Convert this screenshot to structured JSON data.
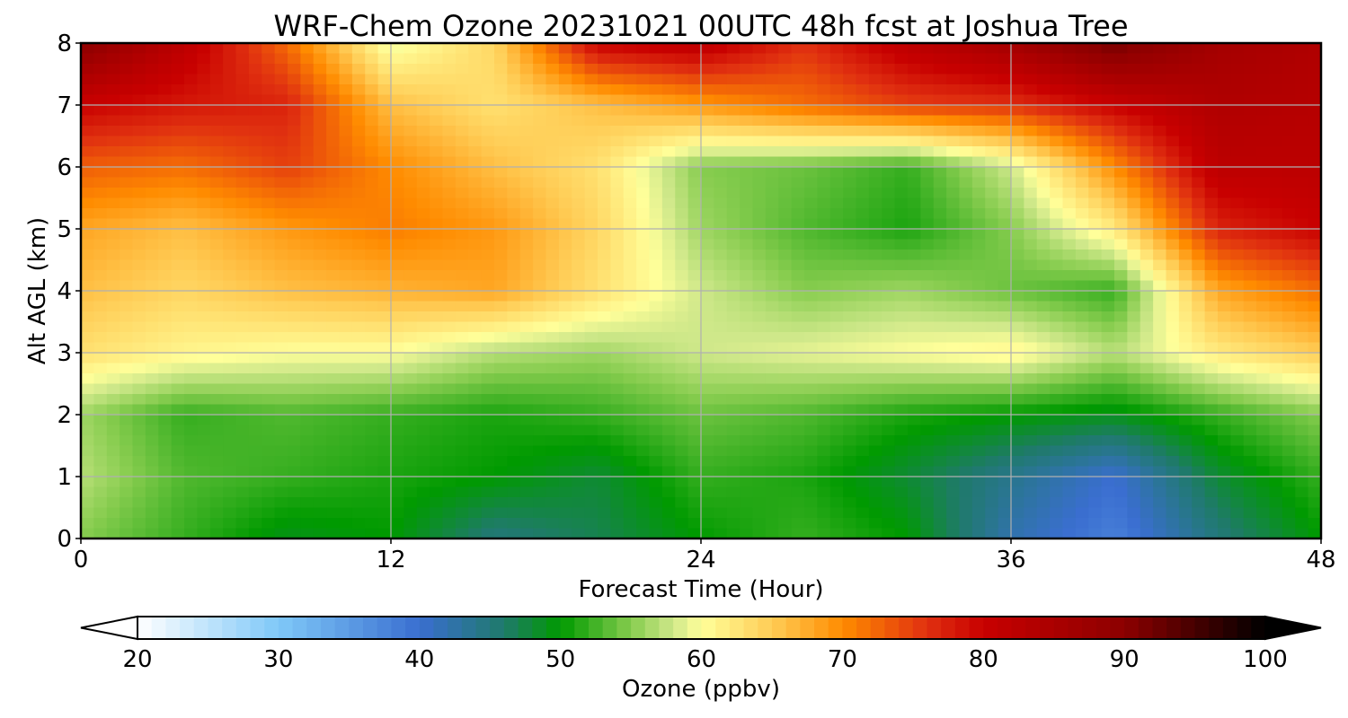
{
  "chart_data": {
    "type": "heatmap",
    "title": "WRF-Chem Ozone  20231021 00UTC 48h fcst at Joshua Tree",
    "xlabel": "Forecast Time (Hour)",
    "ylabel": "Alt AGL (km)",
    "xlim": [
      0,
      48
    ],
    "ylim": [
      0,
      8
    ],
    "xticks": [
      0,
      12,
      24,
      36,
      48
    ],
    "yticks": [
      0,
      1,
      2,
      3,
      4,
      5,
      6,
      7,
      8
    ],
    "grid": true,
    "x": [
      0,
      4,
      8,
      12,
      16,
      20,
      24,
      28,
      32,
      36,
      40,
      44,
      48
    ],
    "y": [
      0,
      1,
      2,
      3,
      4,
      5,
      6,
      7,
      8
    ],
    "z": [
      [
        55,
        52,
        49,
        50,
        45,
        47,
        50,
        52,
        50,
        42,
        38,
        45,
        50
      ],
      [
        57,
        53,
        52,
        51,
        50,
        48,
        52,
        51,
        48,
        44,
        40,
        48,
        52
      ],
      [
        56,
        52,
        53,
        52,
        51,
        52,
        54,
        53,
        51,
        50,
        49,
        52,
        55
      ],
      [
        63,
        61,
        60,
        60,
        57,
        56,
        58,
        59,
        60,
        61,
        57,
        62,
        65
      ],
      [
        66,
        64,
        66,
        67,
        68,
        63,
        58,
        55,
        56,
        54,
        52,
        68,
        72
      ],
      [
        68,
        66,
        69,
        71,
        69,
        64,
        56,
        53,
        51,
        55,
        62,
        77,
        80
      ],
      [
        73,
        72,
        75,
        70,
        66,
        63,
        55,
        54,
        52,
        58,
        70,
        82,
        82
      ],
      [
        80,
        78,
        77,
        66,
        63,
        66,
        69,
        72,
        75,
        76,
        80,
        84,
        83
      ],
      [
        90,
        82,
        72,
        59,
        64,
        80,
        82,
        76,
        82,
        86,
        92,
        86,
        84
      ]
    ],
    "colorbar": {
      "label": "Ozone  (ppbv)",
      "min": 20,
      "max": 100,
      "ticks": [
        20,
        30,
        40,
        50,
        60,
        70,
        80,
        90,
        100
      ],
      "extend": "both",
      "colors": [
        {
          "v": 20,
          "c": "#ffffff"
        },
        {
          "v": 30,
          "c": "#7fc8f8"
        },
        {
          "v": 40,
          "c": "#3a6ed0"
        },
        {
          "v": 46,
          "c": "#1f7a6a"
        },
        {
          "v": 50,
          "c": "#009a00"
        },
        {
          "v": 55,
          "c": "#86cc4e"
        },
        {
          "v": 58,
          "c": "#cfe88a"
        },
        {
          "v": 60,
          "c": "#ffff9a"
        },
        {
          "v": 65,
          "c": "#ffcc55"
        },
        {
          "v": 70,
          "c": "#ff8c00"
        },
        {
          "v": 76,
          "c": "#e03010"
        },
        {
          "v": 80,
          "c": "#c80000"
        },
        {
          "v": 90,
          "c": "#8c0000"
        },
        {
          "v": 100,
          "c": "#000000"
        }
      ]
    }
  }
}
